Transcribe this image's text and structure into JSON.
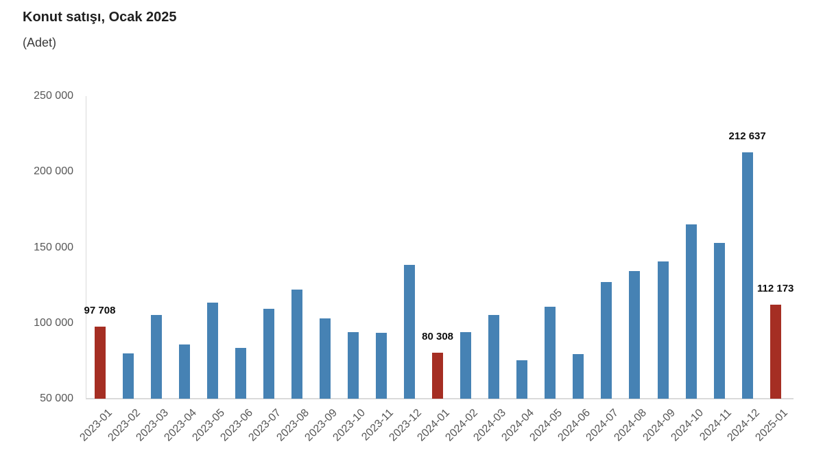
{
  "header": {
    "title": "Konut satışı, Ocak 2025",
    "subtitle": "(Adet)"
  },
  "chart_data": {
    "type": "bar",
    "title": "Konut satışı, Ocak 2025",
    "ylabel": "(Adet)",
    "categories": [
      "2023-01",
      "2023-02",
      "2023-03",
      "2023-04",
      "2023-05",
      "2023-06",
      "2023-07",
      "2023-08",
      "2023-09",
      "2023-10",
      "2023-11",
      "2023-12",
      "2024-01",
      "2024-02",
      "2024-03",
      "2024-04",
      "2024-05",
      "2024-06",
      "2024-07",
      "2024-08",
      "2024-09",
      "2024-10",
      "2024-11",
      "2024-12",
      "2025-01"
    ],
    "values": [
      97708,
      80000,
      105500,
      85700,
      113400,
      83600,
      109600,
      122100,
      102900,
      93800,
      93500,
      138600,
      80308,
      93900,
      105400,
      75600,
      110600,
      79300,
      127100,
      134200,
      140900,
      165100,
      153000,
      212637,
      112173
    ],
    "highlighted_categories": [
      "2023-01",
      "2024-01",
      "2025-01"
    ],
    "data_labels": {
      "2023-01": "97 708",
      "2024-01": "80 308",
      "2024-12": "212 637",
      "2025-01": "112 173"
    },
    "ylim": [
      50000,
      250000
    ],
    "ytick_values": [
      50000,
      100000,
      150000,
      200000,
      250000
    ],
    "ytick_labels": [
      "50 000",
      "100 000",
      "150 000",
      "200 000",
      "250 000"
    ],
    "grid": false,
    "legend": false,
    "colors": {
      "bar_blue": "#4682B4",
      "bar_red": "#A52E23",
      "axis_line": "#dadada",
      "tick_text": "#565656",
      "value_label_text": "#0d0d0d",
      "background": "#ffffff"
    }
  }
}
